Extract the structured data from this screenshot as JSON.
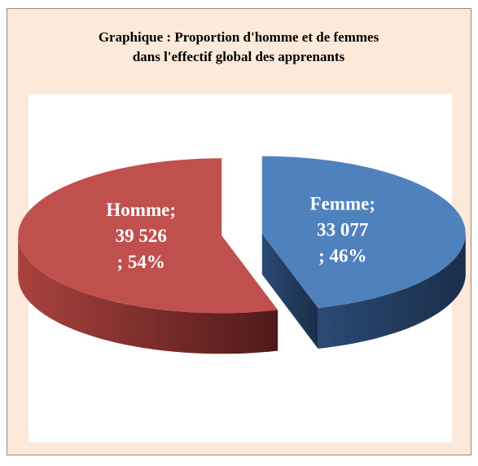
{
  "chart_data": {
    "type": "pie3d",
    "title": "Graphique : Proportion d'homme et de femmes",
    "subtitle": "dans l'effectif global des apprenants",
    "categories": [
      "Homme;",
      "Femme;"
    ],
    "values": [
      39526,
      33077
    ],
    "value_labels": [
      "39 526",
      "33 077"
    ],
    "percents": [
      54,
      46
    ],
    "percent_labels": [
      "; 54%",
      "; 46%"
    ],
    "colors": [
      "#c0504d",
      "#4f81bd"
    ]
  }
}
